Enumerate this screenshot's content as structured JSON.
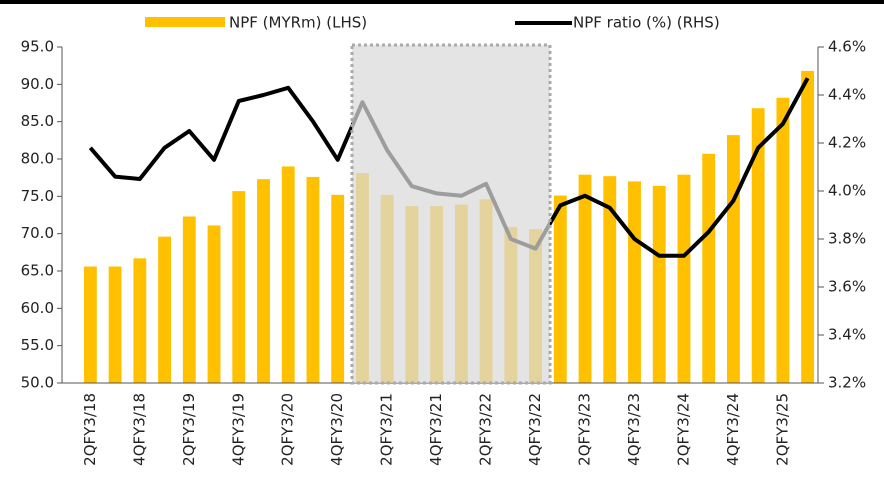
{
  "chart_data": {
    "type": "bar",
    "categories": [
      "2QFY3/18",
      null,
      "4QFY3/18",
      null,
      "2QFY3/19",
      null,
      "4QFY3/19",
      null,
      "2QFY3/20",
      null,
      "4QFY3/20",
      null,
      "2QFY3/21",
      null,
      "4QFY3/21",
      null,
      "2QFY3/22",
      null,
      "4QFY3/22",
      null,
      "2QFY3/23",
      null,
      "4QFY3/23",
      null,
      "2QFY3/24",
      null,
      "4QFY3/24",
      null,
      "2QFY3/25",
      null
    ],
    "series": [
      {
        "name": "NPF (MYRm) (LHS)",
        "type": "bar",
        "color": "#FFC000",
        "values": [
          65.6,
          65.6,
          66.7,
          69.6,
          72.3,
          71.1,
          75.7,
          77.3,
          79.0,
          77.6,
          75.2,
          78.1,
          75.2,
          73.7,
          73.7,
          73.9,
          74.6,
          70.9,
          70.6,
          75.1,
          77.9,
          77.7,
          77.0,
          76.4,
          77.9,
          80.7,
          83.2,
          86.8,
          88.2,
          91.8
        ]
      },
      {
        "name": "NPF ratio (%) (RHS)",
        "type": "line",
        "axis": "y2",
        "color": "#000000",
        "values": [
          4.18,
          4.06,
          4.05,
          4.18,
          4.25,
          4.13,
          4.375,
          4.4,
          4.43,
          4.29,
          4.13,
          4.37,
          4.17,
          4.02,
          3.99,
          3.98,
          4.03,
          3.8,
          3.76,
          3.94,
          3.98,
          3.93,
          3.8,
          3.73,
          3.73,
          3.83,
          3.96,
          4.18,
          4.28,
          4.47
        ]
      }
    ],
    "ylim": [
      50,
      95
    ],
    "yticks": [
      {
        "value": 50,
        "label": "50.0"
      },
      {
        "value": 55,
        "label": "55.0"
      },
      {
        "value": 60,
        "label": "60.0"
      },
      {
        "value": 65,
        "label": "65.0"
      },
      {
        "value": 70,
        "label": "70.0"
      },
      {
        "value": 75,
        "label": "75.0"
      },
      {
        "value": 80,
        "label": "80.0"
      },
      {
        "value": 85,
        "label": "85.0"
      },
      {
        "value": 90,
        "label": "90.0"
      },
      {
        "value": 95,
        "label": "95.0"
      }
    ],
    "y2lim": [
      3.2,
      4.6
    ],
    "y2ticks": [
      {
        "value": 3.2,
        "label": "3.2%"
      },
      {
        "value": 3.4,
        "label": "3.4%"
      },
      {
        "value": 3.6,
        "label": "3.6%"
      },
      {
        "value": 3.8,
        "label": "3.8%"
      },
      {
        "value": 4.0,
        "label": "4.0%"
      },
      {
        "value": 4.2,
        "label": "4.2%"
      },
      {
        "value": 4.4,
        "label": "4.4%"
      },
      {
        "value": 4.6,
        "label": "4.6%"
      }
    ]
  }
}
